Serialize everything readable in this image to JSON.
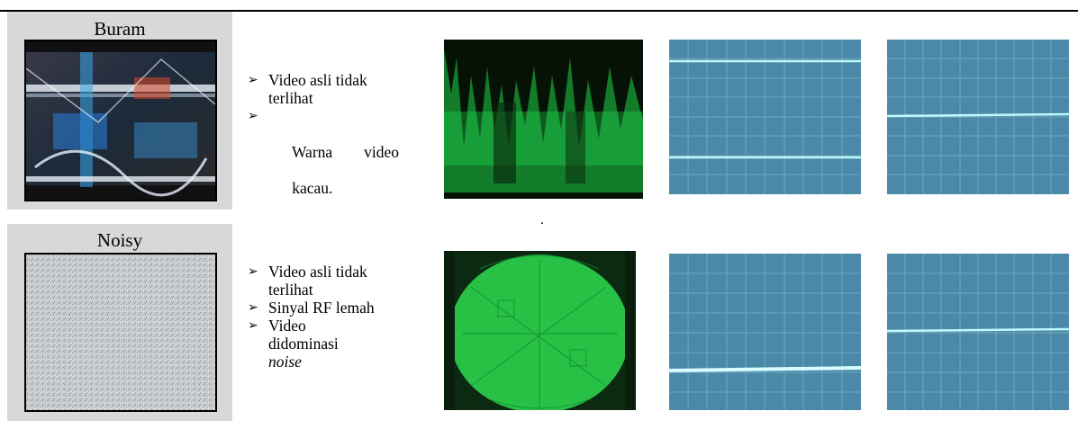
{
  "rows": [
    {
      "title": "Buram",
      "bullets": [
        {
          "line1": "Video asli tidak",
          "line2": "terlihat"
        },
        {
          "line1": "Warna        video",
          "line2": "kacau."
        }
      ]
    },
    {
      "title": "Noisy",
      "bullets": [
        {
          "line1": "Video asli tidak",
          "line2": "terlihat"
        },
        {
          "line1": "Sinyal RF lemah",
          "line2": ""
        },
        {
          "line1": "Video",
          "line2": "didominasi",
          "line3_italic": "noise"
        }
      ]
    }
  ],
  "separator_mark": ".",
  "colors": {
    "label_bg": "#d8d8d8",
    "scope_green": "#1fd34a",
    "scope_cyan_grid": "#4a8aa8",
    "trace_cyan": "#bff8ff"
  },
  "icons": {
    "bullet": "arrowhead-bullet-icon"
  }
}
